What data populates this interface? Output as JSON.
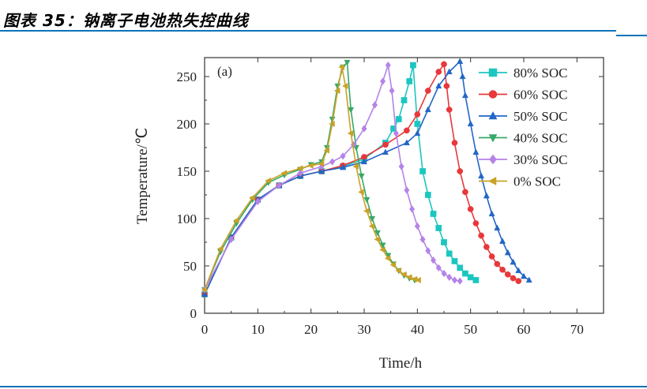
{
  "caption": "图表 35：钠离子电池热失控曲线",
  "colors": {
    "rule": "#0f73b8"
  },
  "chart_data": {
    "type": "line",
    "panel_label": "(a)",
    "xlabel": "Time/h",
    "ylabel": "Temperature/℃",
    "xlim": [
      0,
      75
    ],
    "ylim": [
      0,
      270
    ],
    "xticks": [
      0,
      10,
      20,
      30,
      40,
      50,
      60,
      70
    ],
    "yticks": [
      0,
      50,
      100,
      150,
      200,
      250
    ],
    "legend_position": "top-right",
    "series": [
      {
        "name": "80% SOC",
        "color": "#1cc6c0",
        "marker": "square",
        "x": [
          0,
          5,
          10,
          14,
          18,
          22,
          26,
          30,
          34,
          35.5,
          36.5,
          37.5,
          38.5,
          39.2,
          40,
          41,
          42,
          43,
          44,
          45,
          46,
          47,
          48,
          49,
          50,
          51
        ],
        "y": [
          20,
          80,
          120,
          135,
          145,
          150,
          155,
          163,
          180,
          195,
          205,
          225,
          245,
          262,
          200,
          150,
          125,
          105,
          90,
          75,
          63,
          55,
          48,
          42,
          38,
          35
        ]
      },
      {
        "name": "60% SOC",
        "color": "#e8383b",
        "marker": "circle",
        "x": [
          0,
          5,
          10,
          14,
          18,
          22,
          26,
          30,
          34,
          38,
          40,
          42,
          44,
          45,
          45.5,
          46,
          47,
          48,
          49,
          50,
          51,
          52,
          53,
          54,
          55,
          56,
          57,
          58,
          59
        ],
        "y": [
          20,
          80,
          120,
          135,
          145,
          150,
          156,
          165,
          178,
          193,
          210,
          235,
          255,
          263,
          240,
          215,
          180,
          150,
          128,
          110,
          95,
          82,
          70,
          60,
          52,
          46,
          41,
          37,
          34
        ]
      },
      {
        "name": "50% SOC",
        "color": "#2366c6",
        "marker": "triangle-up",
        "x": [
          0,
          5,
          10,
          14,
          18,
          22,
          26,
          30,
          34,
          38,
          40,
          42,
          44,
          46,
          48,
          48.5,
          49,
          50,
          51,
          52,
          53,
          54,
          55,
          56,
          57,
          58,
          59,
          60,
          61
        ],
        "y": [
          20,
          80,
          120,
          135,
          145,
          150,
          154,
          160,
          170,
          180,
          190,
          215,
          240,
          255,
          266,
          250,
          230,
          200,
          170,
          145,
          124,
          105,
          90,
          76,
          64,
          54,
          45,
          39,
          35
        ]
      },
      {
        "name": "40% SOC",
        "color": "#37a868",
        "marker": "triangle-down",
        "x": [
          0,
          3,
          6,
          9,
          12,
          15,
          18,
          20,
          22,
          23,
          24,
          25,
          26,
          26.8,
          27.5,
          28.5,
          29.5,
          30.5,
          31.5,
          32.5,
          33.5,
          34.5,
          35.5,
          36.5,
          37.5,
          38.5,
          39.5
        ],
        "y": [
          25,
          65,
          95,
          120,
          138,
          146,
          152,
          157,
          160,
          175,
          205,
          240,
          260,
          265,
          215,
          175,
          145,
          120,
          100,
          85,
          72,
          61,
          52,
          45,
          40,
          37,
          35
        ]
      },
      {
        "name": "30% SOC",
        "color": "#b583e8",
        "marker": "diamond",
        "x": [
          0,
          5,
          10,
          14,
          18,
          22,
          24,
          26,
          28,
          30,
          32,
          33.5,
          34.5,
          35.2,
          36,
          37,
          38,
          39,
          40,
          41,
          42,
          43,
          44,
          45,
          46,
          47,
          48
        ],
        "y": [
          25,
          78,
          118,
          135,
          148,
          155,
          160,
          166,
          178,
          195,
          220,
          245,
          262,
          235,
          190,
          155,
          130,
          110,
          92,
          78,
          66,
          56,
          48,
          42,
          38,
          35,
          34
        ]
      },
      {
        "name": "0% SOC",
        "color": "#c9a227",
        "marker": "triangle-left",
        "x": [
          0,
          3,
          6,
          9,
          12,
          15,
          18,
          20,
          22,
          23,
          24,
          25,
          25.8,
          26.5,
          27.5,
          28.5,
          29.5,
          30.5,
          31.5,
          32.5,
          33.5,
          34.5,
          35.5,
          36.5,
          37.5,
          38.5,
          39.5,
          40.2
        ],
        "y": [
          25,
          68,
          98,
          122,
          140,
          148,
          153,
          156,
          158,
          172,
          200,
          235,
          260,
          240,
          190,
          155,
          128,
          108,
          92,
          78,
          67,
          58,
          51,
          45,
          41,
          38,
          36,
          35
        ]
      }
    ]
  }
}
